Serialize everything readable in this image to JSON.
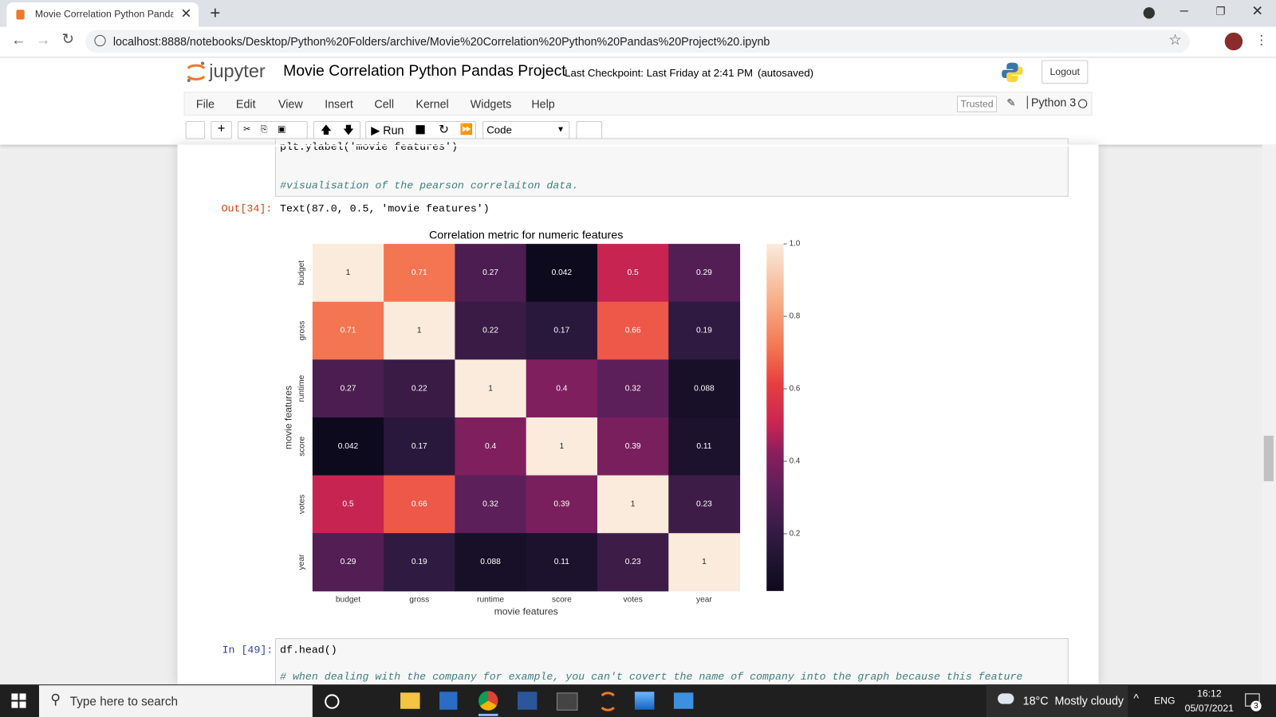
{
  "browser": {
    "tab_title": "Movie Correlation Python Pandas",
    "url": "localhost:8888/notebooks/Desktop/Python%20Folders/archive/Movie%20Correlation%20Python%20Pandas%20Project%20.ipynb"
  },
  "header": {
    "logo": "jupyter",
    "notebook_title": "Movie Correlation Python Pandas Project",
    "checkpoint": "Last Checkpoint: Last Friday at 2:41 PM",
    "autosaved": "(autosaved)",
    "logout": "Logout"
  },
  "menu": [
    "File",
    "Edit",
    "View",
    "Insert",
    "Cell",
    "Kernel",
    "Widgets",
    "Help"
  ],
  "trusted": "Trusted",
  "kernel": "Python 3",
  "toolbar": {
    "run": "Run",
    "cell_type": "Code"
  },
  "cells": [
    {
      "code": [
        "plt.ylabel('movie features')",
        "#visualisation of the pearson correlaiton data."
      ],
      "output_prompt": "Out[34]:",
      "output_text": "Text(87.0, 0.5, 'movie features')"
    },
    {
      "prompt": "In [49]:",
      "code": [
        "df.head()",
        "# when dealing with the company for example, you can't covert the name of company into the graph because this feature"
      ]
    }
  ],
  "chart_data": {
    "type": "heatmap",
    "title": "Correlation metric for numeric features",
    "x_label": "movie features",
    "y_label": "movie features",
    "x": [
      "budget",
      "gross",
      "runtime",
      "score",
      "votes",
      "year"
    ],
    "y": [
      "budget",
      "gross",
      "runtime",
      "score",
      "votes",
      "year"
    ],
    "values": [
      [
        1,
        0.71,
        0.27,
        0.042,
        0.5,
        0.29
      ],
      [
        0.71,
        1,
        0.22,
        0.17,
        0.66,
        0.19
      ],
      [
        0.27,
        0.22,
        1,
        0.4,
        0.32,
        0.088
      ],
      [
        0.042,
        0.17,
        0.4,
        1,
        0.39,
        0.11
      ],
      [
        0.5,
        0.66,
        0.32,
        0.39,
        1,
        0.23
      ],
      [
        0.29,
        0.19,
        0.088,
        0.11,
        0.23,
        1
      ]
    ],
    "colormap": "rocket",
    "clim": [
      0.042,
      1
    ],
    "cticks": [
      {
        "value": 1,
        "label": "1.0"
      },
      0.8,
      0.6,
      0.4,
      0.2
    ]
  },
  "taskbar": {
    "search": "Type here to search",
    "weather": "18°C  Mostly cloudy",
    "language": "ENG",
    "time": "16:12",
    "date": "05/07/2021",
    "notifications": "3"
  }
}
